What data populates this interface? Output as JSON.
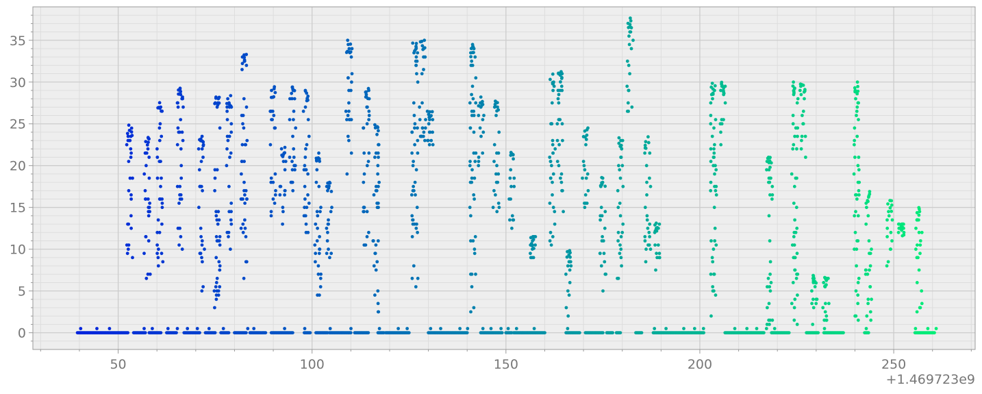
{
  "chart_data": {
    "type": "scatter",
    "x_offset_label": "+1.469723e9",
    "xlim": [
      28,
      271
    ],
    "ylim": [
      -2,
      39
    ],
    "x_ticks": [
      50,
      100,
      150,
      200,
      250
    ],
    "x_tick_labels": [
      "50",
      "100",
      "150",
      "200",
      "250"
    ],
    "y_ticks": [
      0,
      5,
      10,
      15,
      20,
      25,
      30,
      35
    ],
    "y_tick_labels": [
      "0",
      "5",
      "10",
      "15",
      "20",
      "25",
      "30",
      "35"
    ],
    "grid": true,
    "colormap": {
      "start": "#0022dd",
      "end": "#00ee77"
    },
    "background": "#eeeeee",
    "baseline_segments": [
      [
        39.5,
        52.5
      ],
      [
        54,
        57
      ],
      [
        58,
        61
      ],
      [
        62.5,
        65
      ],
      [
        67,
        71
      ],
      [
        72.5,
        75
      ],
      [
        76.5,
        78.5
      ],
      [
        80,
        83
      ],
      [
        84,
        88
      ],
      [
        89.5,
        95
      ],
      [
        98,
        99.5
      ],
      [
        101,
        104
      ],
      [
        104.5,
        110
      ],
      [
        111,
        114.5
      ],
      [
        117,
        118.5
      ],
      [
        119,
        125
      ],
      [
        130,
        140
      ],
      [
        143.5,
        149
      ],
      [
        150,
        151.5
      ],
      [
        152,
        160
      ],
      [
        165.5,
        169
      ],
      [
        170.5,
        175
      ],
      [
        176,
        177.5
      ],
      [
        178.5,
        179.5
      ],
      [
        183.5,
        185
      ],
      [
        188,
        201
      ],
      [
        206.5,
        216.5
      ],
      [
        218.5,
        223
      ],
      [
        227.5,
        230.5
      ],
      [
        232,
        237
      ],
      [
        242.5,
        243.5
      ],
      [
        255.5,
        260.5
      ]
    ],
    "bursts": [
      [
        53,
        8,
        25
      ],
      [
        57.5,
        6,
        23.5
      ],
      [
        60.8,
        8,
        28
      ],
      [
        66,
        9,
        29.5
      ],
      [
        71.5,
        5,
        23.5
      ],
      [
        75.5,
        3,
        28.5
      ],
      [
        78.5,
        10,
        28.5
      ],
      [
        82.5,
        6.5,
        33.5
      ],
      [
        90,
        13.5,
        29.5
      ],
      [
        92.5,
        13,
        22.5
      ],
      [
        95,
        15,
        29.5
      ],
      [
        98.5,
        12,
        29
      ],
      [
        101.5,
        4,
        21.5
      ],
      [
        104.5,
        7,
        18
      ],
      [
        109.5,
        18.5,
        35
      ],
      [
        114,
        10,
        29.5
      ],
      [
        116.5,
        2,
        25
      ],
      [
        126.5,
        4.5,
        35
      ],
      [
        128.5,
        22.5,
        35
      ],
      [
        130.5,
        22.5,
        27
      ],
      [
        141.5,
        2,
        34.5
      ],
      [
        143.5,
        20,
        28.5
      ],
      [
        147.5,
        14,
        28
      ],
      [
        151.5,
        12.5,
        22
      ],
      [
        157,
        8.5,
        11.5
      ],
      [
        162,
        10.5,
        31
      ],
      [
        164,
        13,
        31.5
      ],
      [
        166,
        2,
        10.5
      ],
      [
        170.5,
        14.5,
        24.5
      ],
      [
        175,
        5,
        19
      ],
      [
        179.5,
        6,
        23.5
      ],
      [
        182,
        26,
        38
      ],
      [
        186.5,
        8.5,
        23.5
      ],
      [
        189,
        6,
        13.5
      ],
      [
        203.5,
        0,
        30
      ],
      [
        206,
        22,
        30
      ],
      [
        218,
        0,
        21
      ],
      [
        224.5,
        0,
        30
      ],
      [
        226.5,
        21,
        30
      ],
      [
        229.5,
        1,
        7
      ],
      [
        232.5,
        1,
        7
      ],
      [
        240.5,
        0,
        30
      ],
      [
        243.5,
        1,
        17
      ],
      [
        249,
        8,
        16
      ],
      [
        252,
        12,
        13
      ],
      [
        256.5,
        1,
        15
      ]
    ]
  }
}
